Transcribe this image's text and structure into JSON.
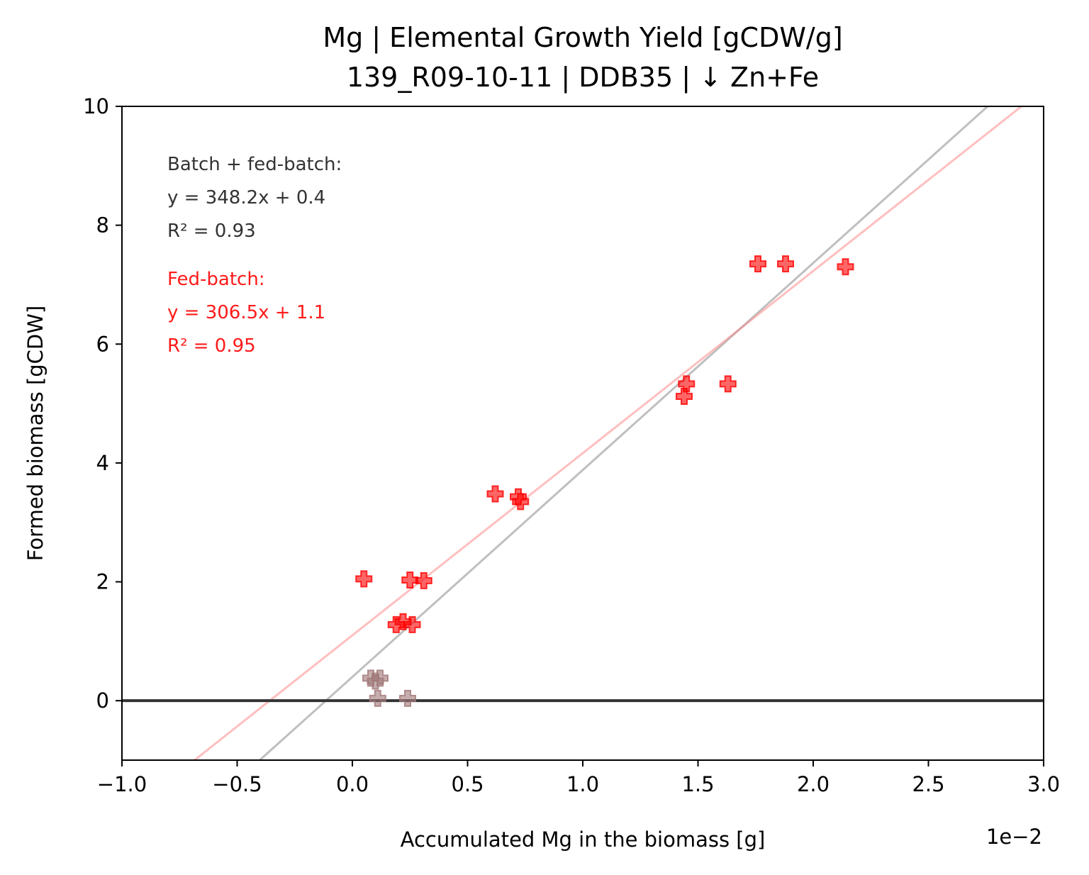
{
  "chart_data": {
    "type": "scatter",
    "title": "Mg  |  Elemental Growth Yield [gCDW/g]",
    "subtitle": "139_R09-10-11  |  DDB35  |  ↓ Zn+Fe",
    "xlabel": "Accumulated Mg in the biomass [g]",
    "ylabel": "Formed biomass [gCDW]",
    "x_scale_label": "1e−2",
    "xlim": [
      -1.0,
      3.0
    ],
    "ylim": [
      -1.0,
      10.0
    ],
    "x_ticks": [
      -1.0,
      -0.5,
      0.0,
      0.5,
      1.0,
      1.5,
      2.0,
      2.5,
      3.0
    ],
    "x_tick_labels": [
      "−1.0",
      "−0.5",
      "0.0",
      "0.5",
      "1.0",
      "1.5",
      "2.0",
      "2.5",
      "3.0"
    ],
    "y_ticks": [
      0,
      2,
      4,
      6,
      8,
      10
    ],
    "y_tick_labels": [
      "0",
      "2",
      "4",
      "6",
      "8",
      "10"
    ],
    "grid": false,
    "zero_line": 0,
    "series": [
      {
        "color": "#ff0000",
        "marker": "plus",
        "x": [
          0.05,
          0.25,
          0.31,
          0.19,
          0.22,
          0.26,
          0.62,
          0.72,
          0.73,
          1.44,
          1.45,
          1.63,
          1.76,
          1.88,
          2.14
        ],
        "y": [
          2.05,
          2.03,
          2.02,
          1.28,
          1.33,
          1.28,
          3.48,
          3.43,
          3.35,
          5.12,
          5.33,
          5.33,
          7.35,
          7.35,
          7.3
        ]
      },
      {
        "color": "#a07878",
        "marker": "plus",
        "x": [
          0.08,
          0.1,
          0.12,
          0.11,
          0.24
        ],
        "y": [
          0.38,
          0.33,
          0.38,
          0.04,
          0.04
        ]
      }
    ],
    "fits": [
      {
        "color": "#808080",
        "slope": 348.2,
        "intercept": 0.4
      },
      {
        "color": "#ff8080",
        "slope": 306.5,
        "intercept": 1.1
      }
    ],
    "annotations": [
      {
        "color": "#333333",
        "lines": [
          "Batch + fed-batch:",
          "y = 348.2x + 0.4",
          "R² = 0.93"
        ]
      },
      {
        "color": "#ff1a1a",
        "lines": [
          "Fed-batch:",
          "y = 306.5x + 1.1",
          "R² = 0.95"
        ]
      }
    ]
  }
}
